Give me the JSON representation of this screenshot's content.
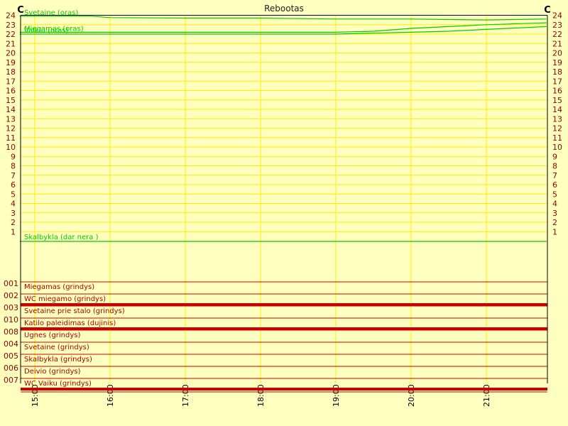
{
  "title": "Rebootas",
  "unit_left": "C",
  "unit_right": "C",
  "chart_data": {
    "type": "line",
    "title": "Rebootas",
    "x_tick_labels": [
      "15:00",
      "16:00",
      "17:00",
      "18:00",
      "19:00",
      "20:00",
      "21:00"
    ],
    "xlim": [
      "14:48",
      "21:48"
    ],
    "y_tick_labels": [
      "24",
      "23",
      "22",
      "21",
      "20",
      "19",
      "18",
      "17",
      "16",
      "15",
      "14",
      "13",
      "12",
      "11",
      "10",
      "9",
      "8",
      "7",
      "6",
      "5",
      "4",
      "3",
      "2",
      "1"
    ],
    "ylim": [
      1,
      24
    ],
    "grid": true,
    "series": [
      {
        "name": "Svetaine (oras)",
        "color": "#00cc00",
        "x": [
          "14:48",
          "15:45",
          "16:00",
          "17:00",
          "18:00",
          "19:00",
          "20:00",
          "21:00",
          "21:48"
        ],
        "y": [
          23.9,
          23.9,
          23.75,
          23.7,
          23.7,
          23.6,
          23.6,
          23.5,
          23.6
        ]
      },
      {
        "name": "Miegamas (oras)",
        "color": "#00cc00",
        "x": [
          "14:48",
          "16:00",
          "17:00",
          "18:00",
          "19:00",
          "19:30",
          "20:00",
          "20:30",
          "21:00",
          "21:48"
        ],
        "y": [
          22.2,
          22.2,
          22.2,
          22.2,
          22.2,
          22.3,
          22.6,
          22.8,
          23.0,
          23.2
        ]
      },
      {
        "name": "Vaikiu (oras)",
        "color": "#00cc00",
        "x": [
          "14:48",
          "16:00",
          "17:00",
          "18:00",
          "19:00",
          "19:30",
          "20:00",
          "20:30",
          "21:00",
          "21:48"
        ],
        "y": [
          22.0,
          22.0,
          22.0,
          22.0,
          22.0,
          22.1,
          22.2,
          22.3,
          22.5,
          22.8
        ]
      },
      {
        "name": "Skalbykla (dar nera )",
        "color": "#00cc00",
        "x": [
          "14:48",
          "21:48"
        ],
        "y": [
          0,
          0
        ]
      }
    ],
    "status_rows": [
      {
        "code": "001",
        "label": "Miegamas (grindys)",
        "state": "off"
      },
      {
        "code": "002",
        "label": "WC miegamo (grindys)",
        "state": "on"
      },
      {
        "code": "003",
        "label": "Svetaine prie stalo (grindys)",
        "state": "off"
      },
      {
        "code": "010",
        "label": "Katilo paleidimas (dujinis)",
        "state": "on"
      },
      {
        "code": "008",
        "label": "Ugnes (grindys)",
        "state": "off"
      },
      {
        "code": "004",
        "label": "Svetaine (grindys)",
        "state": "off"
      },
      {
        "code": "005",
        "label": "Skalbykla (grindys)",
        "state": "off"
      },
      {
        "code": "006",
        "label": "Deivio (grindys)",
        "state": "off"
      },
      {
        "code": "007",
        "label": "WC Vaiku (grindys)",
        "state": "on"
      }
    ]
  },
  "colors": {
    "background": "#ffffc0",
    "grid": "#ffee00",
    "series": "#00cc00",
    "status": "#cc0000",
    "label": "#8b0000"
  }
}
